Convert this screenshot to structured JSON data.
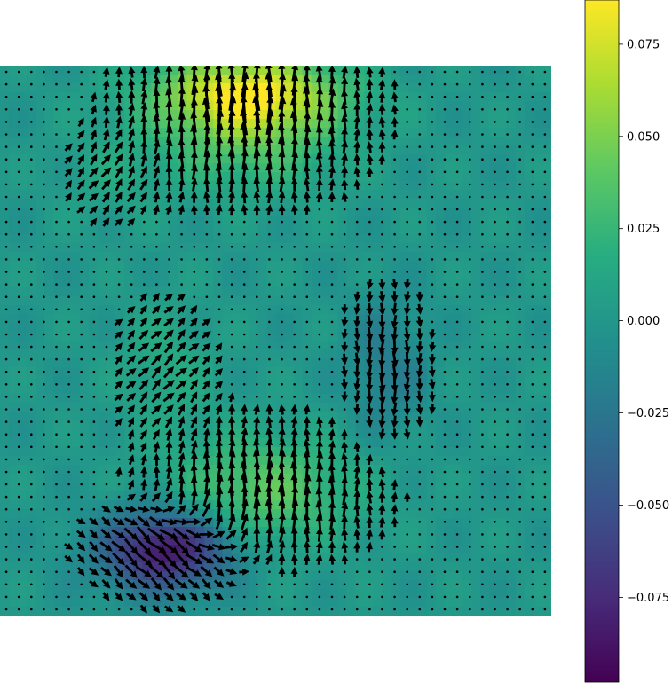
{
  "chart_data": {
    "type": "heatmap",
    "subtype": "quiver-over-heatmap",
    "title": "",
    "xlabel": "",
    "ylabel": "",
    "axes_visible": false,
    "grid": false,
    "colormap": "viridis",
    "colorbar": {
      "position": "right",
      "vmin": -0.098,
      "vmax": 0.087,
      "ticks": [
        0.075,
        0.05,
        0.025,
        0.0,
        -0.025,
        -0.05,
        -0.075
      ],
      "tick_labels": [
        "0.075",
        "0.050",
        "0.025",
        "0.000",
        "−0.025",
        "−0.050",
        "−0.075"
      ]
    },
    "grid_size": {
      "columns": 44,
      "rows": 44
    },
    "features": [
      {
        "name": "top-band",
        "cx": 0.45,
        "cy": 0.05,
        "sx": 0.12,
        "sy": 0.05,
        "amp": 0.085,
        "flow": "up"
      },
      {
        "name": "upper-stripes",
        "cx": 0.45,
        "cy": 0.15,
        "sx": 0.12,
        "sy": 0.06,
        "amp": 0.03,
        "flow": "up"
      },
      {
        "name": "upper-left-cluster",
        "cx": 0.2,
        "cy": 0.2,
        "sx": 0.06,
        "sy": 0.06,
        "amp": 0.01,
        "flow": "up-right"
      },
      {
        "name": "mid-left-cluster",
        "cx": 0.3,
        "cy": 0.55,
        "sx": 0.06,
        "sy": 0.08,
        "amp": 0.015,
        "flow": "up-right"
      },
      {
        "name": "right-cluster",
        "cx": 0.7,
        "cy": 0.55,
        "sx": 0.05,
        "sy": 0.09,
        "amp": -0.02,
        "flow": "down"
      },
      {
        "name": "lower-band",
        "cx": 0.48,
        "cy": 0.77,
        "sx": 0.12,
        "sy": 0.07,
        "amp": 0.04,
        "flow": "up"
      },
      {
        "name": "bottom-left-dark",
        "cx": 0.3,
        "cy": 0.88,
        "sx": 0.08,
        "sy": 0.05,
        "amp": -0.09,
        "flow": "down-right"
      }
    ]
  }
}
